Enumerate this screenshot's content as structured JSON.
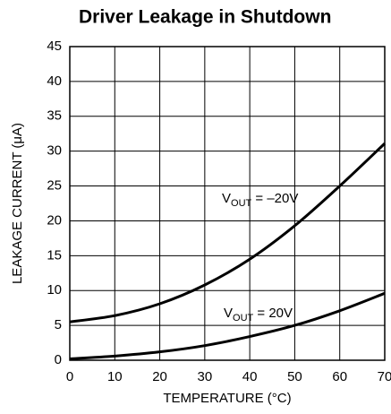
{
  "chart_data": {
    "type": "line",
    "title": "Driver Leakage in Shutdown",
    "x_label": "TEMPERATURE (°C)",
    "y_label": "LEAKAGE CURRENT (μA)",
    "x": [
      0,
      10,
      20,
      30,
      40,
      50,
      60,
      70
    ],
    "series": [
      {
        "name": {
          "main": "V",
          "sub": "OUT",
          "rest": " = –20V"
        },
        "color": "#000000",
        "values": [
          5.5,
          6.4,
          8.1,
          10.8,
          14.5,
          19.3,
          25,
          31.1
        ]
      },
      {
        "name": {
          "main": "V",
          "sub": "OUT",
          "rest": " = 20V"
        },
        "color": "#000000",
        "values": [
          0.2,
          0.6,
          1.2,
          2.1,
          3.4,
          5.0,
          7.1,
          9.6
        ]
      }
    ],
    "xlim": [
      0,
      70
    ],
    "xticks": [
      0,
      10,
      20,
      30,
      40,
      50,
      60,
      70
    ],
    "ylim": [
      0,
      45
    ],
    "yticks": [
      0,
      5,
      10,
      15,
      20,
      25,
      30,
      35,
      40,
      45
    ],
    "grid": true
  }
}
